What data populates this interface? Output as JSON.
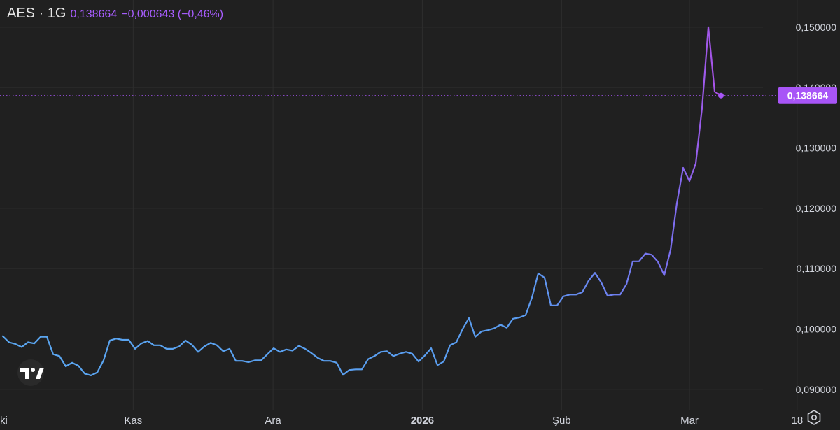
{
  "header": {
    "symbol": "AES · 1G",
    "price": "0,138664",
    "change": "−0,000643 (−0,46%)"
  },
  "colors": {
    "background": "#202020",
    "grid": "#2e2e2e",
    "line_start": "#5aa6f0",
    "line_end": "#b04ee6",
    "last_price": "#a855f7"
  },
  "icons": {
    "logo": "tradingview-logo-icon",
    "settings": "settings-icon"
  },
  "chart_data": {
    "type": "line",
    "y_min": 0.0865,
    "y_max": 0.1545,
    "y_ticks": [
      0.09,
      0.1,
      0.11,
      0.12,
      0.13,
      0.14,
      0.15
    ],
    "y_tick_labels": [
      "0,090000",
      "0,100000",
      "0,110000",
      "0,120000",
      "0,130000",
      "0,140000",
      "0,150000"
    ],
    "x_ticks": [
      {
        "label": "ki",
        "day": -1,
        "bold": false
      },
      {
        "label": "Kas",
        "day": 20.7,
        "bold": false
      },
      {
        "label": "Ara",
        "day": 42.9,
        "bold": false
      },
      {
        "label": "2026",
        "day": 66.6,
        "bold": true
      },
      {
        "label": "Şub",
        "day": 88.7,
        "bold": false
      },
      {
        "label": "Mar",
        "day": 109,
        "bold": false
      },
      {
        "label": "18",
        "day": 126.1,
        "bold": false
      }
    ],
    "last_value": 0.138664,
    "last_value_label": "0,138664",
    "values": [
      0.0988,
      0.0978,
      0.0975,
      0.097,
      0.0978,
      0.0976,
      0.0987,
      0.0987,
      0.0958,
      0.0955,
      0.0938,
      0.0944,
      0.0939,
      0.0926,
      0.0923,
      0.0928,
      0.0948,
      0.0981,
      0.0984,
      0.0982,
      0.0982,
      0.0967,
      0.0976,
      0.098,
      0.0973,
      0.0973,
      0.0967,
      0.0967,
      0.0971,
      0.0981,
      0.0974,
      0.0962,
      0.0971,
      0.0977,
      0.0973,
      0.0963,
      0.0967,
      0.0947,
      0.0947,
      0.0945,
      0.0948,
      0.0948,
      0.0958,
      0.0968,
      0.0962,
      0.0966,
      0.0964,
      0.0972,
      0.0967,
      0.096,
      0.0952,
      0.0947,
      0.0947,
      0.0944,
      0.0924,
      0.0932,
      0.0933,
      0.0933,
      0.095,
      0.0955,
      0.0962,
      0.0963,
      0.0955,
      0.0959,
      0.0962,
      0.0959,
      0.0946,
      0.0956,
      0.0968,
      0.094,
      0.0946,
      0.0973,
      0.0978,
      0.1,
      0.1018,
      0.0987,
      0.0996,
      0.0998,
      0.1001,
      0.1007,
      0.1002,
      0.1017,
      0.1019,
      0.1023,
      0.1052,
      0.1092,
      0.1085,
      0.1039,
      0.1039,
      0.1054,
      0.1057,
      0.1057,
      0.1061,
      0.108,
      0.1093,
      0.1077,
      0.1055,
      0.1057,
      0.1057,
      0.1074,
      0.1112,
      0.1112,
      0.1125,
      0.1123,
      0.1111,
      0.1089,
      0.1131,
      0.1208,
      0.1267,
      0.1245,
      0.1274,
      0.1366,
      0.15,
      0.1393,
      0.1387
    ]
  }
}
